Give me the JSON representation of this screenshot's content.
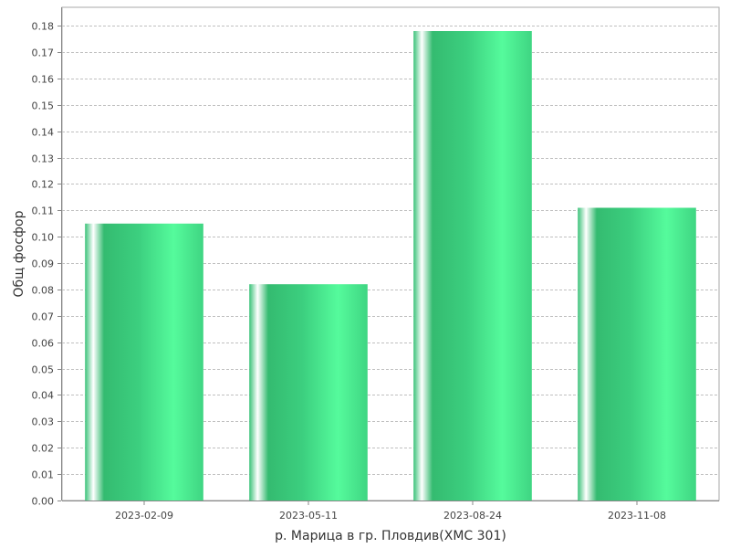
{
  "chart_data": {
    "type": "bar",
    "title": "",
    "xlabel": "р. Марица в гр. Пловдив(ХМС 301)",
    "ylabel": "Общ фосфор",
    "categories": [
      "2023-02-09",
      "2023-05-11",
      "2023-08-24",
      "2023-11-08"
    ],
    "values": [
      0.105,
      0.082,
      0.178,
      0.111
    ],
    "ylim": [
      0,
      0.187
    ],
    "yticks": [
      0.0,
      0.01,
      0.02,
      0.03,
      0.04,
      0.05,
      0.06,
      0.07,
      0.08,
      0.09,
      0.1,
      0.11,
      0.12,
      0.13,
      0.14,
      0.15,
      0.16,
      0.17,
      0.18
    ],
    "grid": true,
    "legend": "none",
    "colors": {
      "bar_dark": "#2fb86e",
      "bar_light": "#55fb9c",
      "bar_highlight": "#ffffff",
      "grid": "#c0c0c0",
      "axis": "#888888"
    }
  }
}
